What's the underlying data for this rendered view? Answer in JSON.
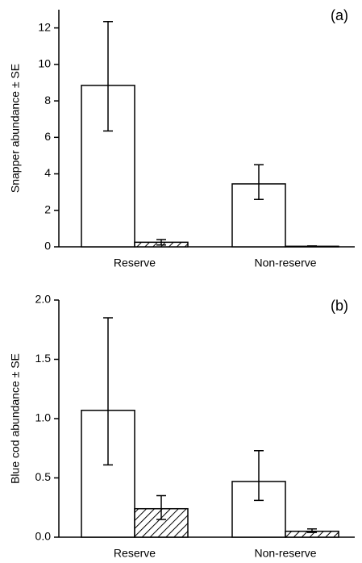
{
  "chart_data": [
    {
      "type": "bar",
      "panel_label": "(a)",
      "y_label": "Snapper abundance ± SE",
      "categories": [
        "Reserve",
        "Non-reserve"
      ],
      "series": [
        {
          "color": "#ffffff",
          "hatch": false,
          "values": [
            8.85,
            3.45
          ],
          "lower": [
            6.35,
            2.6
          ],
          "upper": [
            12.35,
            4.5
          ]
        },
        {
          "color": "#ffffff",
          "hatch": true,
          "values": [
            0.25,
            0.03
          ],
          "lower": [
            0.1,
            0.01
          ],
          "upper": [
            0.4,
            0.05
          ]
        }
      ],
      "ylim": [
        0,
        13
      ],
      "yticks": [
        0,
        2,
        4,
        6,
        8,
        10,
        12
      ]
    },
    {
      "type": "bar",
      "panel_label": "(b)",
      "y_label": "Blue cod abundance ± SE",
      "categories": [
        "Reserve",
        "Non-reserve"
      ],
      "series": [
        {
          "color": "#ffffff",
          "hatch": false,
          "values": [
            1.07,
            0.47
          ],
          "lower": [
            0.61,
            0.31
          ],
          "upper": [
            1.85,
            0.73
          ]
        },
        {
          "color": "#ffffff",
          "hatch": true,
          "values": [
            0.24,
            0.05
          ],
          "lower": [
            0.15,
            0.04
          ],
          "upper": [
            0.35,
            0.07
          ]
        }
      ],
      "ylim": [
        0,
        2
      ],
      "yticks": [
        {
          "value": 0,
          "label": "0.0"
        },
        0.5,
        {
          "value": 1,
          "label": "1.0"
        },
        1.5,
        {
          "value": 2,
          "label": "2.0"
        }
      ]
    }
  ]
}
